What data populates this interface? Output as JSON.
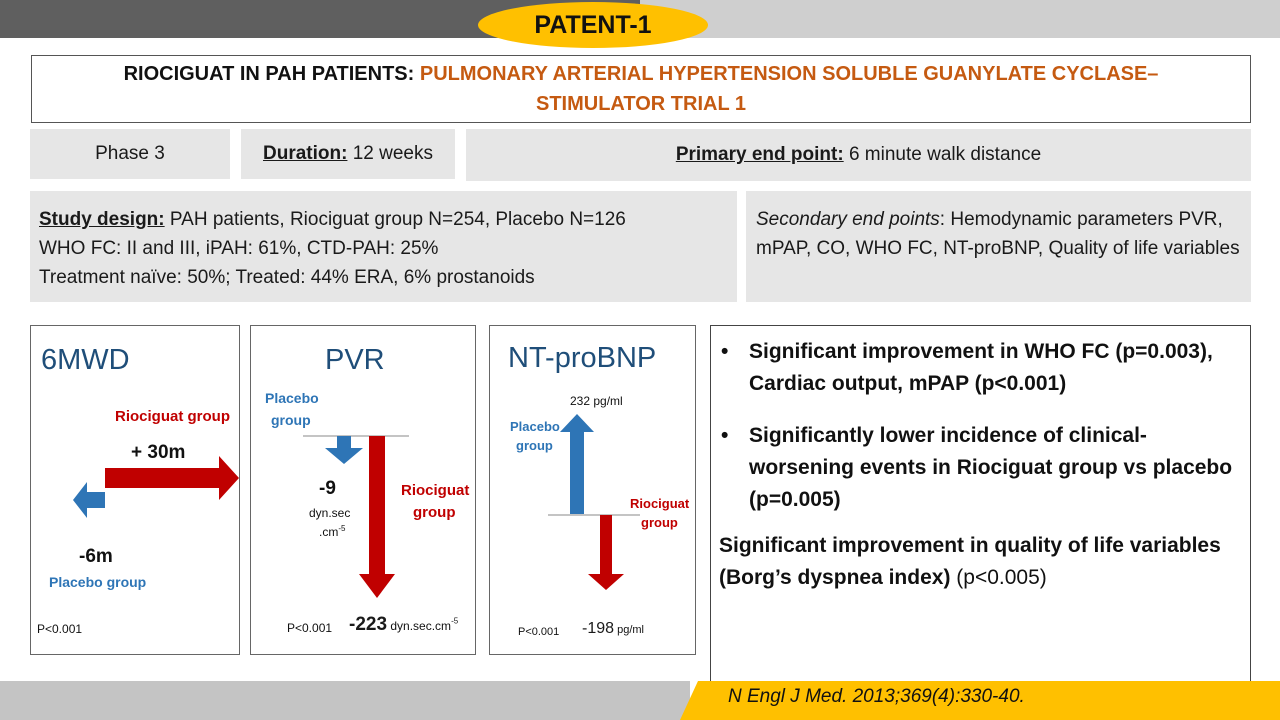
{
  "header": {
    "badge": "PATENT-1"
  },
  "title": {
    "prefix": "RIOCIGUAT IN PAH PATIENTS: ",
    "main": "PULMONARY ARTERIAL HYPERTENSION SOLUBLE GUANYLATE CYCLASE–STIMULATOR TRIAL 1"
  },
  "info": {
    "phase": "Phase 3",
    "duration_label": "Duration:",
    "duration_value": " 12 weeks",
    "primary_label": "Primary end point:",
    "primary_value": " 6 minute walk distance"
  },
  "design": {
    "label": "Study design:",
    "line1_rest": " PAH patients, Riociguat group N=254, Placebo N=126",
    "line2": "WHO FC: II and III, iPAH: 61%, CTD-PAH: 25%",
    "line3": "Treatment naïve: 50%; Treated: 44% ERA, 6% prostanoids"
  },
  "secondary": {
    "label": "Secondary end points",
    "text": ": Hemodynamic parameters PVR, mPAP, CO, WHO FC, NT-proBNP, Quality of life variables"
  },
  "panels": {
    "mwd": {
      "title": "6MWD",
      "riociguat_label": "Riociguat group",
      "riociguat_value": "+ 30m",
      "placebo_value": "-6m",
      "placebo_label": "Placebo group",
      "p_value": "P<0.001"
    },
    "pvr": {
      "title": "PVR",
      "placebo_label_1": "Placebo",
      "placebo_label_2": "group",
      "placebo_value": "-9",
      "placebo_unit_1": "dyn.sec",
      "placebo_unit_2": ".cm",
      "unit_exp": "-5",
      "riociguat_label_1": "Riociguat",
      "riociguat_label_2": "group",
      "p_value": "P<0.001",
      "riociguat_value": "-223",
      "riociguat_unit": " dyn.sec.cm"
    },
    "ntprobnp": {
      "title": "NT-proBNP",
      "placebo_value": "232 pg/ml",
      "placebo_label_1": "Placebo",
      "placebo_label_2": "group",
      "riociguat_label_1": "Riociguat",
      "riociguat_label_2": "group",
      "p_value": "P<0.001",
      "riociguat_value": "-198",
      "riociguat_unit": " pg/ml"
    }
  },
  "findings": {
    "bullet_mark": "•",
    "bullet1": "Significant improvement in WHO FC (p=0.003), Cardiac output, mPAP (p<0.001)",
    "bullet2": "Significantly lower incidence of clinical-worsening events in Riociguat group vs placebo (p=0.005)",
    "qol": "Significant improvement in quality of life variables (Borg’s dyspnea index) ",
    "qol_p": "(p<0.005)"
  },
  "citation": "N Engl J Med. 2013;369(4):330-40.",
  "colors": {
    "accent_yellow": "#ffc000",
    "title_orange": "#c55a11",
    "red_arrow": "#c00000",
    "blue_arrow": "#2e75b6",
    "panel_title_blue": "#1f4e79"
  }
}
